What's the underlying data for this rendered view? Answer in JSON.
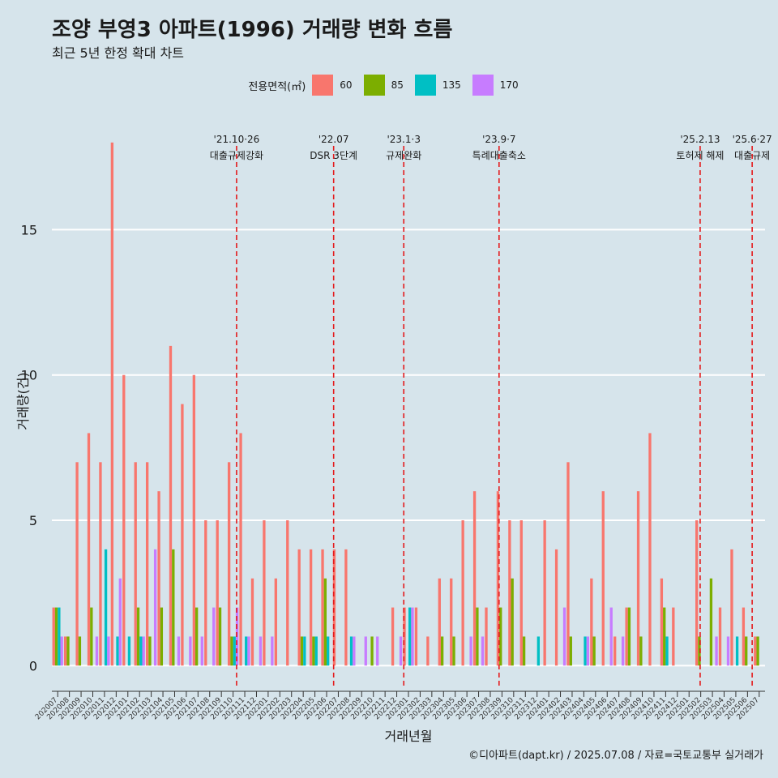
{
  "title": "조양 부영3 아파트(1996) 거래량 변화 흐름",
  "subtitle": "최근 5년 한정 확대 차트",
  "caption": "©디아파트(dapt.kr) / 2025.07.08 / 자료=국토교통부 실거래가",
  "chart_data": {
    "type": "bar",
    "xlabel": "거래년월",
    "ylabel": "거래량(건)",
    "ylim": [
      -0.8,
      19
    ],
    "yticks": [
      0,
      5,
      10,
      15
    ],
    "legend_title": "전용면적(㎡)",
    "legend_placement": "top",
    "grid": true,
    "categories": [
      "202007",
      "202008",
      "202009",
      "202010",
      "202011",
      "202012",
      "202101",
      "202102",
      "202103",
      "202104",
      "202105",
      "202106",
      "202107",
      "202108",
      "202109",
      "202110",
      "202111",
      "202112",
      "202201",
      "202202",
      "202203",
      "202204",
      "202205",
      "202206",
      "202207",
      "202208",
      "202209",
      "202210",
      "202211",
      "202212",
      "202301",
      "202302",
      "202303",
      "202304",
      "202305",
      "202306",
      "202307",
      "202308",
      "202309",
      "202310",
      "202311",
      "202312",
      "202401",
      "202402",
      "202403",
      "202404",
      "202405",
      "202406",
      "202407",
      "202408",
      "202409",
      "202410",
      "202411",
      "202412",
      "202501",
      "202502",
      "202503",
      "202504",
      "202505",
      "202506",
      "202507"
    ],
    "series": [
      {
        "name": "60",
        "color": "#f8766d",
        "values": [
          2,
          1,
          7,
          8,
          7,
          18,
          10,
          7,
          7,
          6,
          11,
          9,
          10,
          5,
          5,
          7,
          8,
          3,
          5,
          3,
          5,
          4,
          4,
          4,
          4,
          4,
          0,
          0,
          0,
          2,
          2,
          2,
          1,
          3,
          3,
          5,
          6,
          2,
          6,
          5,
          5,
          0,
          5,
          4,
          7,
          0,
          3,
          6,
          1,
          2,
          6,
          8,
          3,
          2,
          0,
          5,
          0,
          2,
          4,
          2,
          1
        ]
      },
      {
        "name": "85",
        "color": "#7cae00",
        "values": [
          2,
          1,
          1,
          2,
          0,
          0,
          0,
          2,
          1,
          2,
          4,
          0,
          2,
          0,
          2,
          1,
          0,
          0,
          0,
          0,
          0,
          1,
          1,
          3,
          0,
          0,
          0,
          1,
          0,
          0,
          0,
          0,
          0,
          1,
          1,
          0,
          2,
          0,
          2,
          3,
          1,
          0,
          0,
          0,
          1,
          0,
          1,
          0,
          0,
          2,
          1,
          0,
          2,
          0,
          0,
          1,
          3,
          0,
          0,
          1,
          1
        ]
      },
      {
        "name": "135",
        "color": "#00bfc4",
        "values": [
          2,
          0,
          0,
          0,
          4,
          1,
          1,
          1,
          0,
          0,
          0,
          0,
          0,
          0,
          0,
          1,
          1,
          0,
          0,
          0,
          0,
          1,
          1,
          1,
          0,
          1,
          0,
          0,
          0,
          0,
          2,
          0,
          0,
          0,
          0,
          0,
          0,
          0,
          0,
          0,
          0,
          1,
          0,
          0,
          0,
          1,
          0,
          0,
          0,
          0,
          0,
          0,
          1,
          0,
          0,
          0,
          0,
          0,
          1,
          0,
          0
        ]
      },
      {
        "name": "170",
        "color": "#c77cff",
        "values": [
          1,
          0,
          0,
          1,
          1,
          3,
          0,
          1,
          4,
          0,
          1,
          1,
          1,
          2,
          0,
          2,
          1,
          1,
          1,
          0,
          0,
          0,
          0,
          0,
          0,
          1,
          1,
          1,
          0,
          1,
          2,
          0,
          0,
          0,
          0,
          1,
          1,
          0,
          0,
          0,
          0,
          0,
          0,
          2,
          0,
          1,
          0,
          2,
          1,
          0,
          0,
          0,
          0,
          0,
          0,
          0,
          1,
          1,
          0,
          0,
          0
        ]
      }
    ],
    "annotations": [
      {
        "category": "202110",
        "offset": 0.8,
        "line1": "'21.10·26",
        "line2": "대출규제강화"
      },
      {
        "category": "202207",
        "offset": 0.1,
        "line1": "'22.07",
        "line2": "DSR 3단계"
      },
      {
        "category": "202301",
        "offset": 0.1,
        "line1": "'23.1·3",
        "line2": "규제완화"
      },
      {
        "category": "202309",
        "offset": 0.25,
        "line1": "'23.9·7",
        "line2": "특례대출축소"
      },
      {
        "category": "202502",
        "offset": 0.45,
        "line1": "'25.2.13",
        "line2": "토허제 해제"
      },
      {
        "category": "202506",
        "offset": 0.9,
        "line1": "'25.6·27",
        "line2": "대출규제"
      }
    ]
  }
}
